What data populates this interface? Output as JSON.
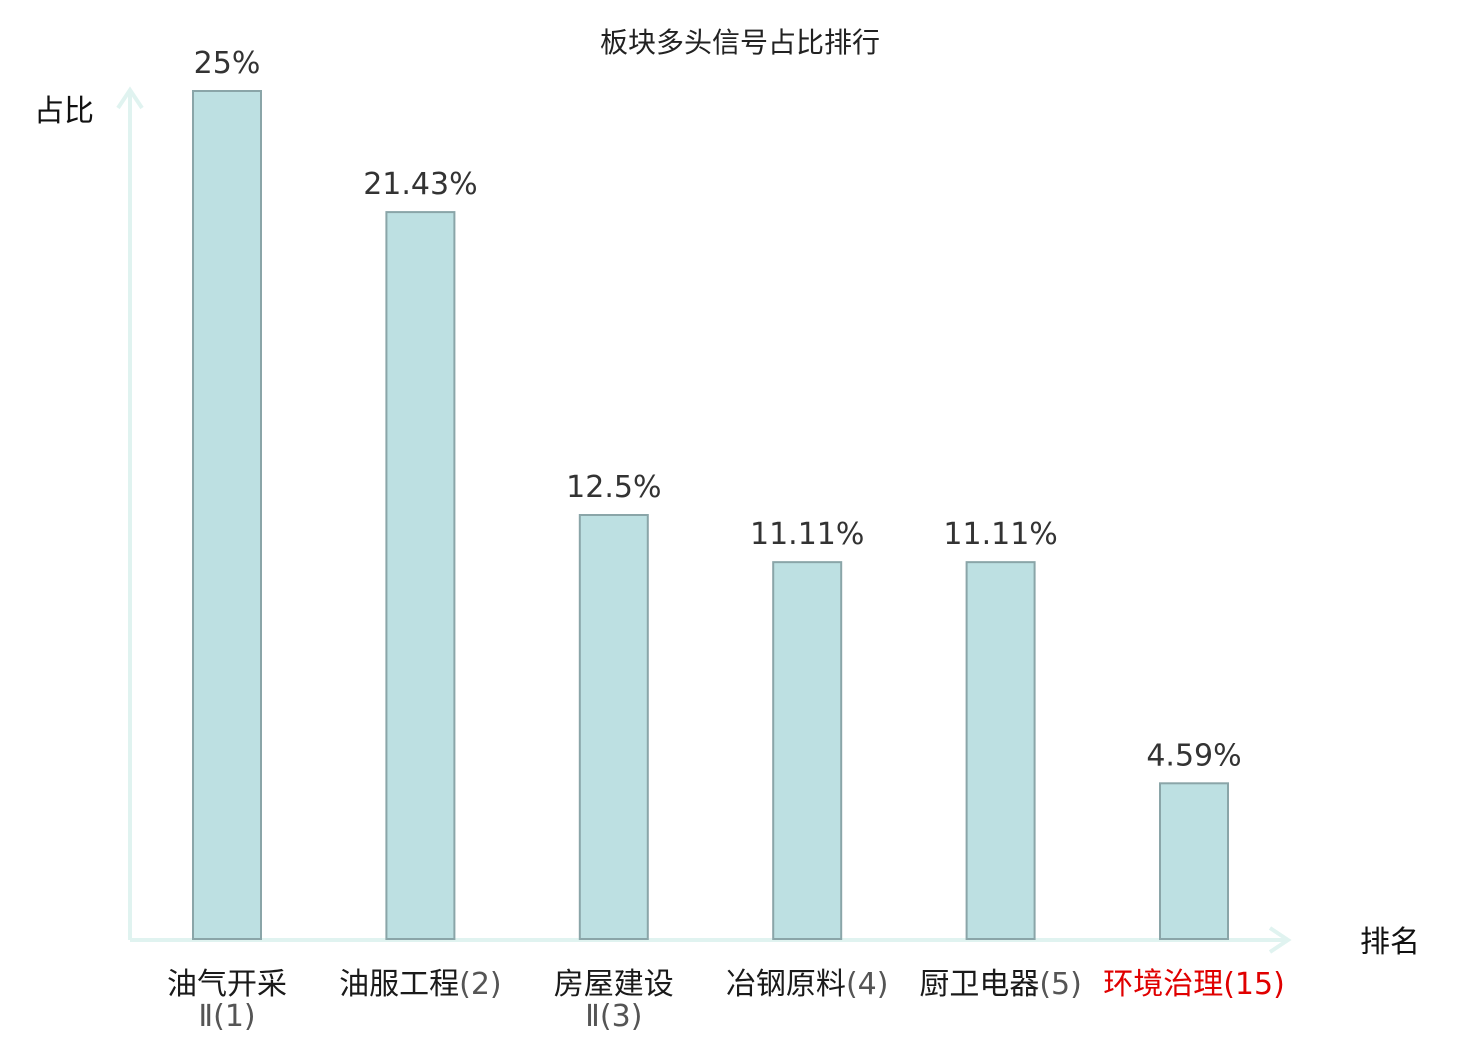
{
  "chart_data": {
    "type": "bar",
    "title": "板块多头信号占比排行",
    "xlabel": "排名",
    "ylabel": "占比",
    "ylim": [
      0,
      25
    ],
    "categories": [
      {
        "name": "油气开采",
        "line2": "Ⅱ(1)",
        "rank_suffix": "",
        "highlight": false
      },
      {
        "name": "油服工程",
        "line2": "",
        "rank_suffix": "(2)",
        "highlight": false
      },
      {
        "name": "房屋建设",
        "line2": "Ⅱ(3)",
        "rank_suffix": "",
        "highlight": false
      },
      {
        "name": "冶钢原料",
        "line2": "",
        "rank_suffix": "(4)",
        "highlight": false
      },
      {
        "name": "厨卫电器",
        "line2": "",
        "rank_suffix": "(5)",
        "highlight": false
      },
      {
        "name": "环境治理",
        "line2": "",
        "rank_suffix": "(15)",
        "highlight": true
      }
    ],
    "values": [
      25,
      21.43,
      12.5,
      11.11,
      11.11,
      4.59
    ],
    "value_labels": [
      "25%",
      "21.43%",
      "12.5%",
      "11.11%",
      "11.11%",
      "4.59%"
    ],
    "grid": false,
    "colors": {
      "bar_fill": "#bde0e2",
      "bar_stroke": "#8aa5a8",
      "axis": "#e0f3f0",
      "highlight_text": "#e00000"
    }
  }
}
